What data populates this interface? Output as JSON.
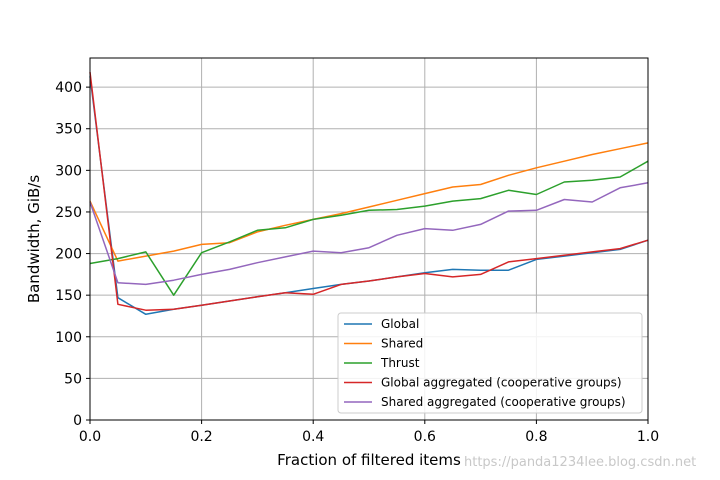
{
  "chart_data": {
    "type": "line",
    "xlabel": "Fraction of filtered items",
    "ylabel": "Bandwidth, GiB/s",
    "xlim": [
      0,
      1
    ],
    "ylim": [
      0,
      435
    ],
    "xticks": [
      0,
      0.2,
      0.4,
      0.6,
      0.8,
      1.0
    ],
    "xtick_labels": [
      "0.0",
      "0.2",
      "0.4",
      "0.6",
      "0.8",
      "1.0"
    ],
    "yticks": [
      0,
      50,
      100,
      150,
      200,
      250,
      300,
      350,
      400
    ],
    "ytick_labels": [
      "0",
      "50",
      "100",
      "150",
      "200",
      "250",
      "300",
      "350",
      "400"
    ],
    "grid": "vertical-and-horizontal",
    "legend_position": "lower-right",
    "x": [
      0,
      0.05,
      0.1,
      0.15,
      0.2,
      0.25,
      0.3,
      0.35,
      0.4,
      0.45,
      0.5,
      0.55,
      0.6,
      0.65,
      0.7,
      0.75,
      0.8,
      0.85,
      0.9,
      0.95,
      1.0
    ],
    "series": [
      {
        "name": "Global",
        "color": "#1f77b4",
        "values": [
          413,
          147,
          127,
          133,
          138,
          143,
          148,
          153,
          158,
          163,
          167,
          172,
          177,
          181,
          180,
          180,
          193,
          197,
          201,
          205,
          216
        ]
      },
      {
        "name": "Shared",
        "color": "#ff7f0e",
        "values": [
          263,
          191,
          197,
          203,
          211,
          213,
          226,
          234,
          241,
          248,
          256,
          264,
          272,
          280,
          283,
          294,
          303,
          311,
          319,
          326,
          333
        ]
      },
      {
        "name": "Thrust",
        "color": "#2ca02c",
        "values": [
          188,
          194,
          202,
          150,
          201,
          214,
          228,
          231,
          241,
          246,
          252,
          253,
          257,
          263,
          266,
          276,
          271,
          286,
          288,
          292,
          311
        ]
      },
      {
        "name": "Global aggregated (cooperative groups)",
        "color": "#d62728",
        "values": [
          418,
          139,
          132,
          133,
          138,
          143,
          148,
          153,
          151,
          163,
          167,
          172,
          176,
          172,
          175,
          190,
          194,
          198,
          202,
          206,
          216
        ]
      },
      {
        "name": "Shared aggregated (cooperative groups)",
        "color": "#9467bd",
        "values": [
          262,
          165,
          163,
          168,
          175,
          181,
          189,
          196,
          203,
          201,
          207,
          222,
          230,
          228,
          235,
          251,
          252,
          265,
          262,
          279,
          285
        ]
      }
    ]
  },
  "watermark": "https://panda1234lee.blog.csdn.net"
}
